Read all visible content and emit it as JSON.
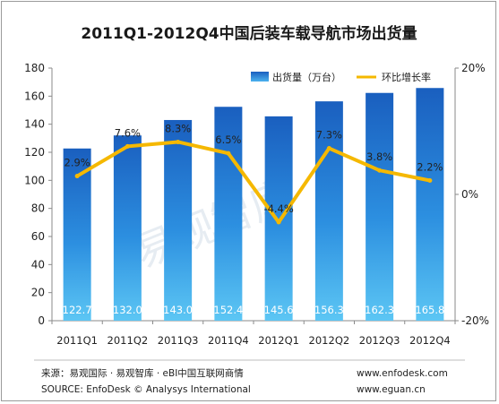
{
  "chart_data": {
    "type": "bar",
    "title": "2011Q1-2012Q4中国后装车载导航市场出货量",
    "categories": [
      "2011Q1",
      "2011Q2",
      "2011Q3",
      "2011Q4",
      "2012Q1",
      "2012Q2",
      "2012Q3",
      "2012Q4"
    ],
    "series": [
      {
        "name": "出货量（万台）",
        "type": "bar",
        "axis": "left",
        "values": [
          122.7,
          132.0,
          143.0,
          152.4,
          145.6,
          156.3,
          162.3,
          165.8
        ],
        "labels": [
          "122.7",
          "132.0",
          "143.0",
          "152.4",
          "145.6",
          "156.3",
          "162.3",
          "165.8"
        ],
        "color": "#1f66c4"
      },
      {
        "name": "环比增长率",
        "type": "line",
        "axis": "right",
        "values": [
          2.9,
          7.6,
          8.3,
          6.5,
          -4.4,
          7.3,
          3.8,
          2.2
        ],
        "labels": [
          "2.9%",
          "7.6%",
          "8.3%",
          "6.5%",
          "-4.4%",
          "7.3%",
          "3.8%",
          "2.2%"
        ],
        "color": "#f5b800"
      }
    ],
    "ylim": [
      0,
      180
    ],
    "yticks": [
      "0",
      "20",
      "40",
      "60",
      "80",
      "100",
      "120",
      "140",
      "160",
      "180"
    ],
    "y2lim": [
      -20,
      20
    ],
    "y2ticks": [
      "-20%",
      "0%",
      "20%"
    ],
    "legend_position": "top-right",
    "grid": false
  },
  "watermark": "易观智库",
  "footer": {
    "source_cn": "来源：易观国际 · 易观智库 · eBI中国互联网商情",
    "source_en": "SOURCE: EnfoDesk © Analysys International",
    "url1": "www.enfodesk.com",
    "url2": "www.eguan.cn"
  }
}
